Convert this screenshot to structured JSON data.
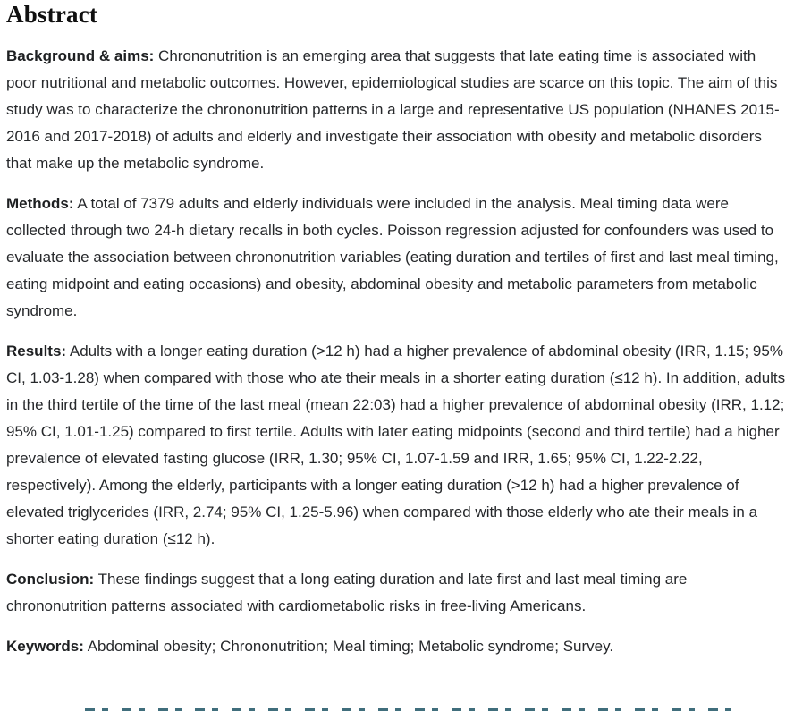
{
  "colors": {
    "body_text": "#26282b",
    "heading_text": "#101010",
    "background": "#ffffff",
    "clipped_line": "#2b5e6d"
  },
  "abstract": {
    "heading": "Abstract",
    "paragraphs": [
      {
        "label": "Background & aims:",
        "text": "Chrononutrition is an emerging area that suggests that late eating time is associated with poor nutritional and metabolic outcomes. However, epidemiological studies are scarce on this topic. The aim of this study was to characterize the chrononutrition patterns in a large and representative US population (NHANES 2015-2016 and 2017-2018) of adults and elderly and investigate their association with obesity and metabolic disorders that make up the metabolic syndrome."
      },
      {
        "label": "Methods:",
        "text": "A total of 7379 adults and elderly individuals were included in the analysis. Meal timing data were collected through two 24-h dietary recalls in both cycles. Poisson regression adjusted for confounders was used to evaluate the association between chrononutrition variables (eating duration and tertiles of first and last meal timing, eating midpoint and eating occasions) and obesity, abdominal obesity and metabolic parameters from metabolic syndrome."
      },
      {
        "label": "Results:",
        "text": "Adults with a longer eating duration (>12 h) had a higher prevalence of abdominal obesity (IRR, 1.15; 95% CI, 1.03-1.28) when compared with those who ate their meals in a shorter eating duration (≤12 h). In addition, adults in the third tertile of the time of the last meal (mean 22:03) had a higher prevalence of abdominal obesity (IRR, 1.12; 95% CI, 1.01-1.25) compared to first tertile. Adults with later eating midpoints (second and third tertile) had a higher prevalence of elevated fasting glucose (IRR, 1.30; 95% CI, 1.07-1.59 and IRR, 1.65; 95% CI, 1.22-2.22, respectively). Among the elderly, participants with a longer eating duration (>12 h) had a higher prevalence of elevated triglycerides (IRR, 2.74; 95% CI, 1.25-5.96) when compared with those elderly who ate their meals in a shorter eating duration (≤12 h)."
      },
      {
        "label": "Conclusion:",
        "text": "These findings suggest that a long eating duration and late first and last meal timing are chrononutrition patterns associated with cardiometabolic risks in free-living Americans."
      },
      {
        "label": "Keywords:",
        "text": "Abdominal obesity; Chrononutrition; Meal timing; Metabolic syndrome; Survey."
      }
    ]
  }
}
